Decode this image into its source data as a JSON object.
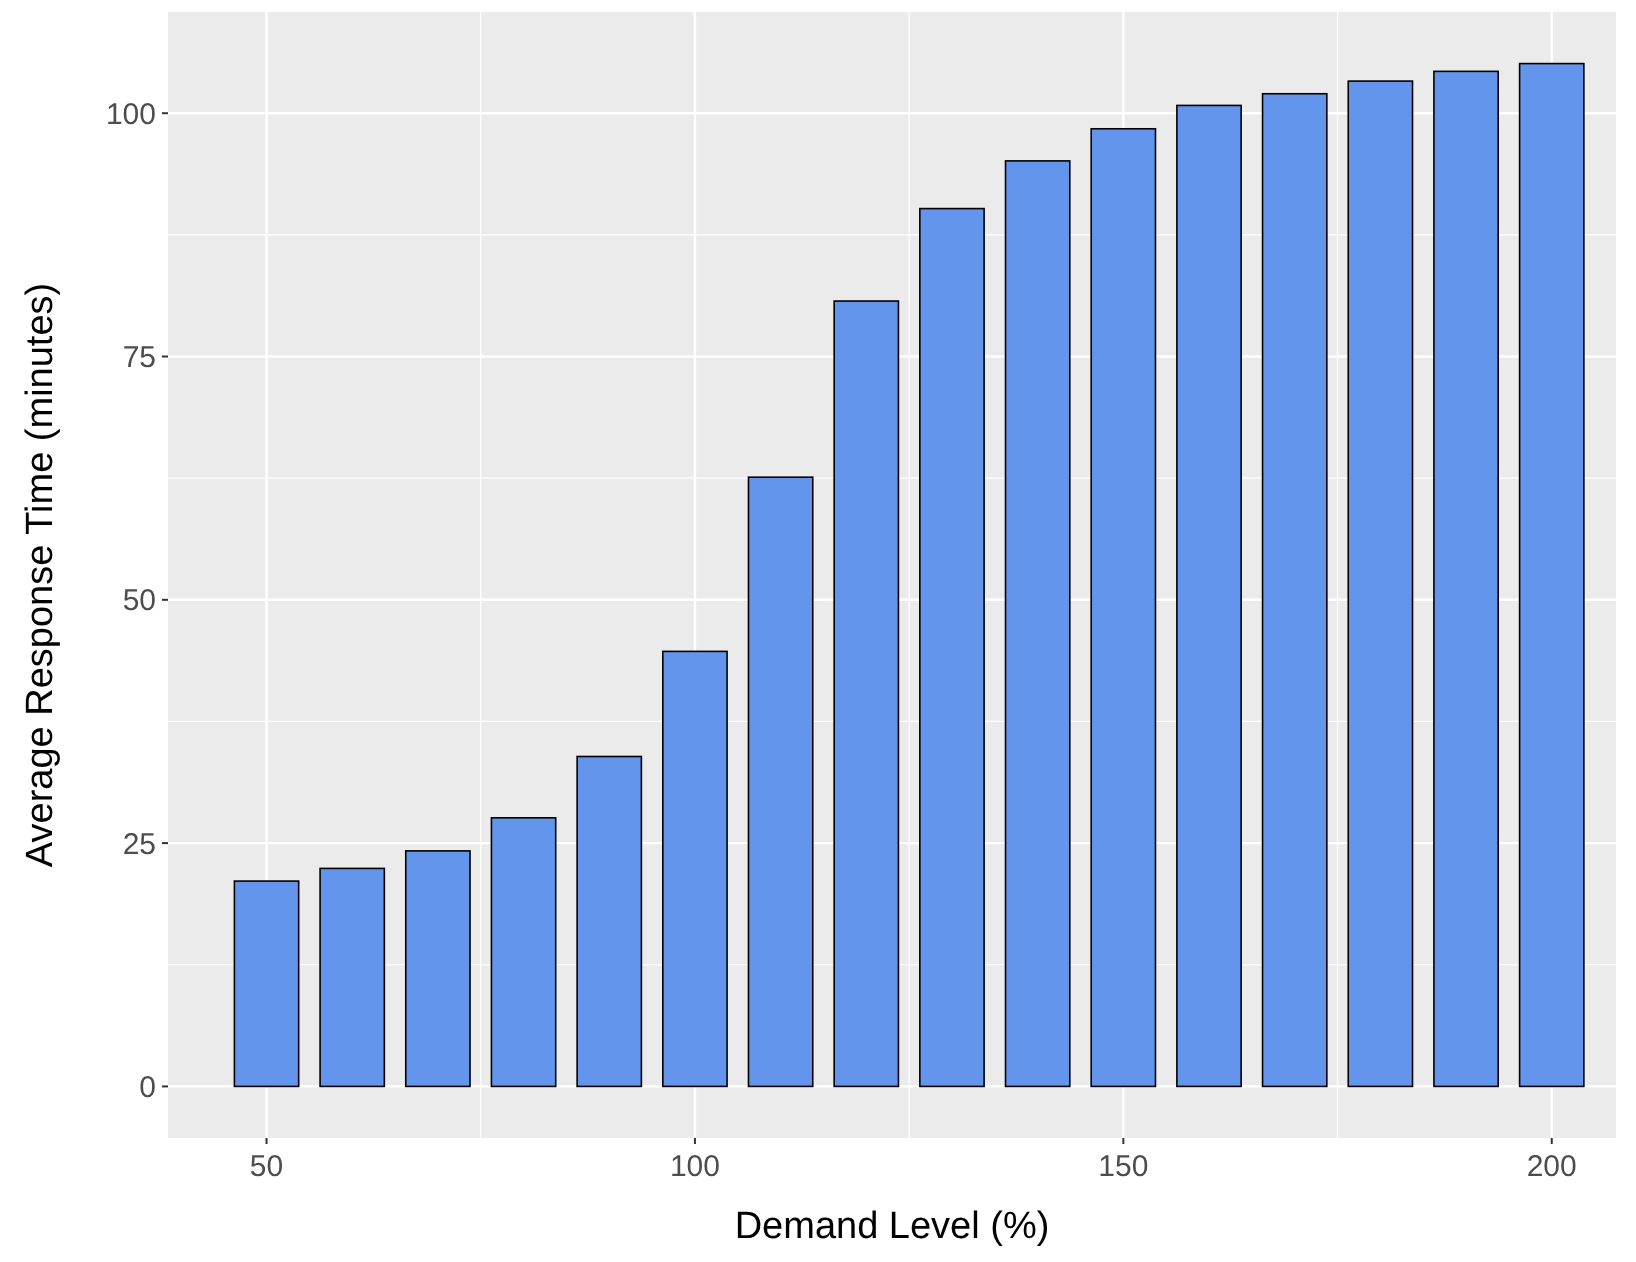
{
  "chart_data": {
    "type": "bar",
    "xlabel": "Demand Level (%)",
    "ylabel": "Average Response Time (minutes)",
    "x": [
      50,
      60,
      70,
      80,
      90,
      100,
      110,
      120,
      130,
      140,
      150,
      160,
      170,
      180,
      190,
      200
    ],
    "values": [
      21.1,
      22.4,
      24.2,
      27.6,
      33.9,
      44.7,
      62.6,
      80.7,
      90.2,
      95.1,
      98.4,
      100.8,
      102.0,
      103.3,
      104.3,
      105.1
    ],
    "color": "#6495ed",
    "xlim": [
      38.5,
      207.5
    ],
    "xticks": [
      50,
      100,
      150,
      200
    ],
    "ylim": [
      -5.3,
      110.4
    ],
    "yticks": [
      0,
      25,
      50,
      75,
      100
    ],
    "grid": true
  }
}
